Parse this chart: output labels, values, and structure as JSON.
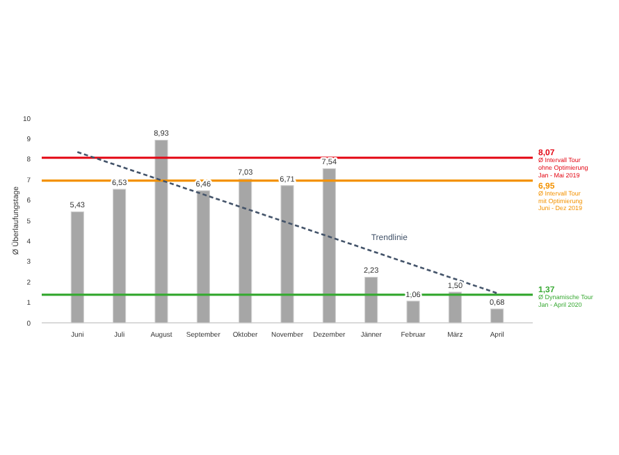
{
  "chart_data": {
    "type": "bar",
    "ylabel": "Ø Überlaufungstage",
    "categories": [
      "Juni",
      "Juli",
      "August",
      "September",
      "Oktober",
      "November",
      "Dezember",
      "Jänner",
      "Februar",
      "März",
      "April"
    ],
    "series": [
      {
        "color": "#a6a6a6",
        "values": [
          5.43,
          6.53,
          8.93,
          6.46,
          7.03,
          6.71,
          7.54,
          2.23,
          1.06,
          1.5,
          0.68
        ],
        "value_labels": [
          "5,43",
          "6,53",
          "8,93",
          "6,46",
          "7,03",
          "6,71",
          "7,54",
          "2,23",
          "1,06",
          "1,50",
          "0,68"
        ]
      },
      {
        "type": "line",
        "name": "Trendlinie",
        "color": "#44546a",
        "line_style": "dashed",
        "values": [
          8.35,
          7.66,
          6.97,
          6.28,
          5.59,
          4.9,
          4.21,
          3.52,
          2.83,
          2.14,
          1.45
        ]
      }
    ],
    "ylim": [
      0,
      10
    ],
    "yticks": [
      0,
      1,
      2,
      3,
      4,
      5,
      6,
      7,
      8,
      9,
      10
    ],
    "grid": false,
    "legend": false,
    "ref_lines": [
      {
        "axis": "y",
        "value": 8.07,
        "color": "#e30613",
        "label": "8,07\nØ Intervall Tour\nohne Optimierung\nJan - Mai 2019"
      },
      {
        "axis": "y",
        "value": 6.95,
        "color": "#f39200",
        "label": "6,95\nØ Intervall Tour\nmit Optimierung\nJuni - Dez 2019"
      },
      {
        "axis": "y",
        "value": 1.37,
        "color": "#3aaa35",
        "label": "1,37\nØ Dynamische Tour\nJan - April 2020"
      }
    ]
  }
}
